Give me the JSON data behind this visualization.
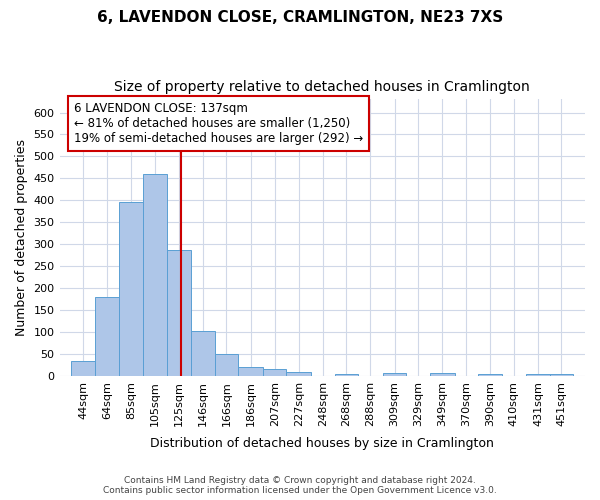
{
  "title_line1": "6, LAVENDON CLOSE, CRAMLINGTON, NE23 7XS",
  "title_line2": "Size of property relative to detached houses in Cramlington",
  "xlabel": "Distribution of detached houses by size in Cramlington",
  "ylabel": "Number of detached properties",
  "footer_line1": "Contains HM Land Registry data © Crown copyright and database right 2024.",
  "footer_line2": "Contains public sector information licensed under the Open Government Licence v3.0.",
  "annotation_line1": "6 LAVENDON CLOSE: 137sqm",
  "annotation_line2": "← 81% of detached houses are smaller (1,250)",
  "annotation_line3": "19% of semi-detached houses are larger (292) →",
  "property_size": 137,
  "bar_categories": [
    "44sqm",
    "64sqm",
    "85sqm",
    "105sqm",
    "125sqm",
    "146sqm",
    "166sqm",
    "186sqm",
    "207sqm",
    "227sqm",
    "248sqm",
    "268sqm",
    "288sqm",
    "309sqm",
    "329sqm",
    "349sqm",
    "370sqm",
    "390sqm",
    "410sqm",
    "431sqm",
    "451sqm"
  ],
  "bar_left_edges": [
    44,
    64,
    85,
    105,
    125,
    146,
    166,
    186,
    207,
    227,
    248,
    268,
    288,
    309,
    329,
    349,
    370,
    390,
    410,
    431,
    451
  ],
  "bar_widths": [
    20,
    21,
    20,
    20,
    21,
    20,
    20,
    21,
    20,
    21,
    20,
    20,
    21,
    20,
    20,
    21,
    20,
    20,
    21,
    20,
    20
  ],
  "bar_heights": [
    35,
    180,
    395,
    460,
    287,
    103,
    49,
    20,
    15,
    9,
    0,
    5,
    0,
    6,
    0,
    7,
    0,
    4,
    0,
    5,
    5
  ],
  "bar_color": "#aec6e8",
  "bar_edge_color": "#5a9fd4",
  "vline_x": 137,
  "vline_color": "#cc0000",
  "annotation_box_color": "#cc0000",
  "ylim": [
    0,
    630
  ],
  "yticks": [
    0,
    50,
    100,
    150,
    200,
    250,
    300,
    350,
    400,
    450,
    500,
    550,
    600
  ],
  "background_color": "#ffffff",
  "grid_color": "#d0d8e8",
  "title_fontsize": 11,
  "subtitle_fontsize": 10,
  "axis_label_fontsize": 9,
  "tick_fontsize": 8,
  "annotation_fontsize": 8.5
}
